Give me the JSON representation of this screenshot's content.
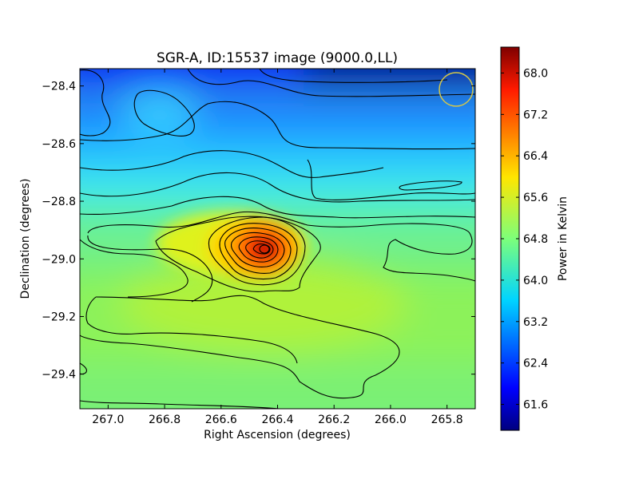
{
  "chart_data": {
    "type": "heatmap",
    "title": "SGR-A, ID:15537 image (9000.0,LL)",
    "xlabel": "Right Ascension (degrees)",
    "ylabel": "Declination (degrees)",
    "xlim": [
      267.1,
      265.7
    ],
    "ylim": [
      -29.52,
      -28.34
    ],
    "x_ticks": [
      267.0,
      266.8,
      266.6,
      266.4,
      266.2,
      266.0,
      265.8
    ],
    "x_tick_labels": [
      "267.0",
      "266.8",
      "266.6",
      "266.4",
      "266.2",
      "266.0",
      "265.8"
    ],
    "y_ticks": [
      -28.4,
      -28.6,
      -28.8,
      -29.0,
      -29.2,
      -29.4
    ],
    "y_tick_labels": [
      "−28.4",
      "−28.6",
      "−28.8",
      "−29.0",
      "−29.2",
      "−29.4"
    ],
    "colormap": "jet",
    "colorbar": {
      "label": "Power in Kelvin",
      "range": [
        61.1,
        68.5
      ],
      "ticks": [
        61.6,
        62.4,
        63.2,
        64.0,
        64.8,
        65.6,
        66.4,
        67.2,
        68.0
      ],
      "tick_labels": [
        "61.6",
        "62.4",
        "63.2",
        "64.0",
        "64.8",
        "65.6",
        "66.4",
        "67.2",
        "68.0"
      ]
    },
    "peak": {
      "ra": 266.44,
      "dec": -28.97,
      "value": 68.4
    },
    "beam_marker": {
      "ra": 265.78,
      "dec": -28.42,
      "color": "#d4c64a"
    },
    "contours": true,
    "grid": false
  }
}
